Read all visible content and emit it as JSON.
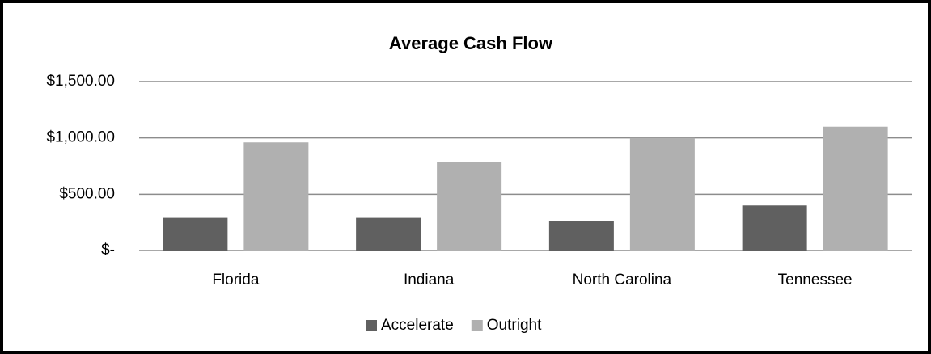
{
  "chart_data": {
    "type": "bar",
    "title": "Average Cash Flow",
    "categories": [
      "Florida",
      "Indiana",
      "North Carolina",
      "Tennessee"
    ],
    "series": [
      {
        "name": "Accelerate",
        "color": "#606060",
        "values": [
          290,
          290,
          260,
          400
        ]
      },
      {
        "name": "Outright",
        "color": "#b0b0b0",
        "values": [
          960,
          785,
          1000,
          1100
        ]
      }
    ],
    "ylim": [
      0,
      1500
    ],
    "yticks": [
      {
        "value": 0,
        "label": "$-"
      },
      {
        "value": 500,
        "label": "$500.00"
      },
      {
        "value": 1000,
        "label": "$1,000.00"
      },
      {
        "value": 1500,
        "label": "$1,500.00"
      }
    ],
    "grid": true,
    "legend": "bottom"
  }
}
